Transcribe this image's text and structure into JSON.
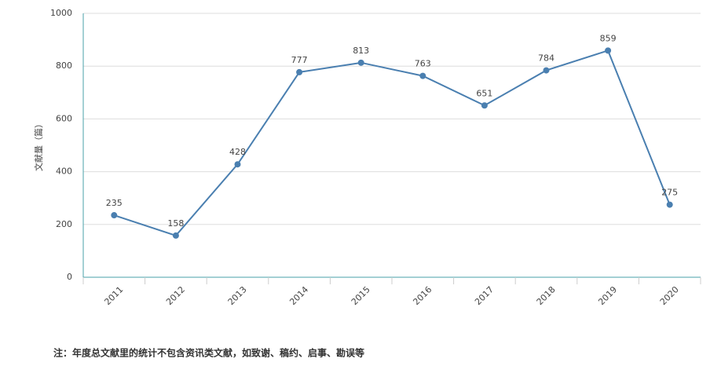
{
  "chart_data": {
    "type": "line",
    "y_label": "文献量（篇）",
    "categories": [
      "2011",
      "2012",
      "2013",
      "2014",
      "2015",
      "2016",
      "2017",
      "2018",
      "2019",
      "2020"
    ],
    "series": [
      {
        "name": "文献量",
        "color": "#4a7fb0",
        "values": [
          235,
          158,
          428,
          777,
          813,
          763,
          651,
          784,
          859,
          275
        ]
      }
    ],
    "ylim": [
      0,
      1000
    ],
    "yticks": [
      0,
      200,
      400,
      600,
      800,
      1000
    ],
    "grid": true
  },
  "note": "注：年度总文献里的统计不包含资讯类文献，如致谢、稿约、启事、勘误等"
}
